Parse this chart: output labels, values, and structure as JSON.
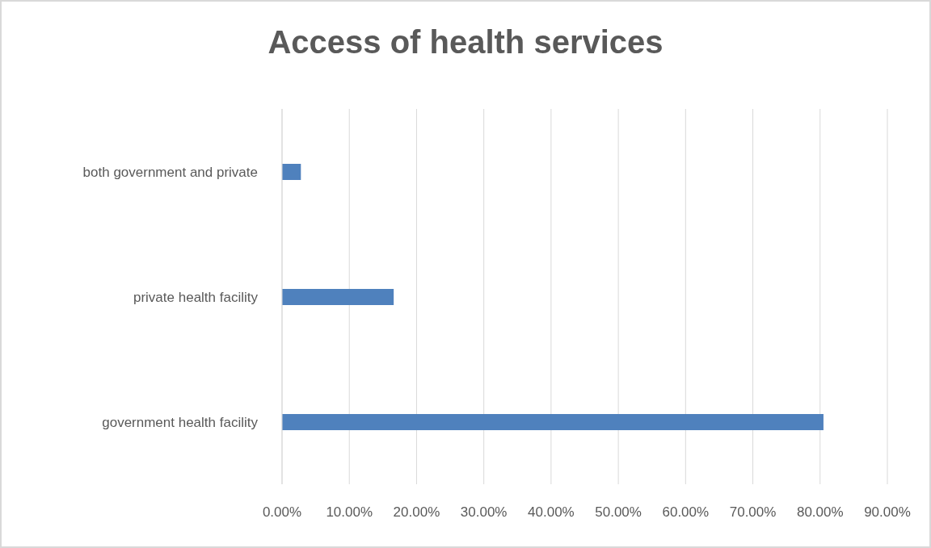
{
  "chart_data": {
    "type": "bar",
    "orientation": "horizontal",
    "title": "Access of health services",
    "categories": [
      "both government and private",
      "private health facility",
      "government health facility"
    ],
    "values": [
      2.8,
      16.6,
      80.5
    ],
    "color": "#4f81bd",
    "xlim": [
      0,
      90
    ],
    "xticks": [
      {
        "value": 0,
        "label": "0.00%"
      },
      {
        "value": 10,
        "label": "10.00%"
      },
      {
        "value": 20,
        "label": "20.00%"
      },
      {
        "value": 30,
        "label": "30.00%"
      },
      {
        "value": 40,
        "label": "40.00%"
      },
      {
        "value": 50,
        "label": "50.00%"
      },
      {
        "value": 60,
        "label": "60.00%"
      },
      {
        "value": 70,
        "label": "70.00%"
      },
      {
        "value": 80,
        "label": "80.00%"
      },
      {
        "value": 90,
        "label": "90.00%"
      }
    ],
    "grid": "x",
    "legend": false
  }
}
